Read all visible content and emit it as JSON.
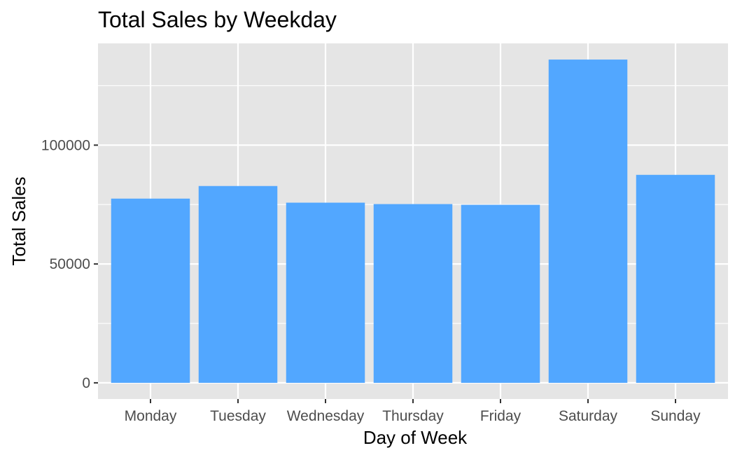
{
  "chart_data": {
    "type": "bar",
    "title": "Total Sales by Weekday",
    "xlabel": "Day of Week",
    "ylabel": "Total Sales",
    "categories": [
      "Monday",
      "Tuesday",
      "Wednesday",
      "Thursday",
      "Friday",
      "Saturday",
      "Sunday"
    ],
    "values": [
      77500,
      82800,
      75800,
      75200,
      74900,
      136000,
      87500
    ],
    "ylim": [
      -6800,
      142800
    ],
    "yticks": [
      0,
      50000,
      100000
    ],
    "ytick_labels": [
      "0",
      "50000",
      "100000"
    ],
    "y_minor_ticks": [
      25000,
      75000,
      125000
    ],
    "grid": true,
    "legend": "none",
    "colors": {
      "bar": "#52a7ff",
      "panel_background": "#e5e5e5",
      "grid_line": "#ffffff",
      "tick_text": "#4d4d4d",
      "axis_tick": "#333333"
    }
  }
}
